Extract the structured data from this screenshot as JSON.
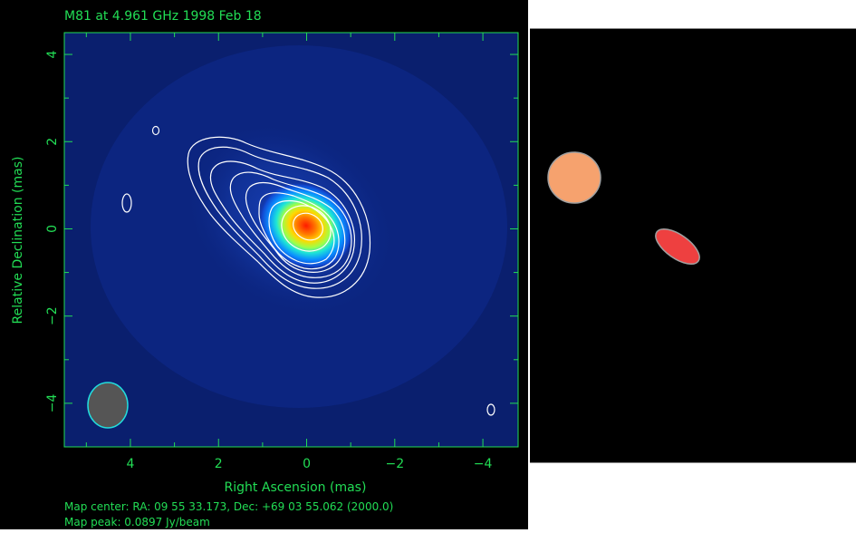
{
  "map": {
    "title": "M81 at 4.961 GHz 1998 Feb 18",
    "xlabel": "Right Ascension  (mas)",
    "ylabel": "Relative Declination  (mas)",
    "x_ticks": [
      "4",
      "2",
      "0",
      "−2",
      "−4"
    ],
    "y_ticks": [
      "4",
      "2",
      "0",
      "−2",
      "−4"
    ],
    "footer_line1": "Map center:  RA: 09 55 33.173,  Dec: +69 03 55.062 (2000.0)",
    "footer_line2": "Map peak: 0.0897 Jy/beam",
    "axis_color": "#22dd55",
    "text_color": "#22dd55",
    "background_color": "#0a1f6e",
    "contour_color": "#ffffff",
    "beam_fill": "#555555",
    "beam_outline": "#22dddd"
  },
  "chart_data": {
    "type": "heatmap",
    "title": "M81 at 4.961 GHz 1998 Feb 18",
    "xlabel": "Right Ascension  (mas)",
    "ylabel": "Relative Declination  (mas)",
    "xlim": [
      5.5,
      -4.8
    ],
    "ylim": [
      -5,
      4.5
    ],
    "x_ticks": [
      4,
      2,
      0,
      -2,
      -4
    ],
    "y_ticks": [
      4,
      2,
      0,
      -2,
      -4
    ],
    "peak_position": [
      0,
      0
    ],
    "peak": "0.0897 Jy/beam",
    "beam_center": [
      4.4,
      -4.0
    ]
  },
  "model_panel": {
    "background_color": "#000000",
    "component_colors": [
      "#f6a26e",
      "#ee4040"
    ]
  }
}
